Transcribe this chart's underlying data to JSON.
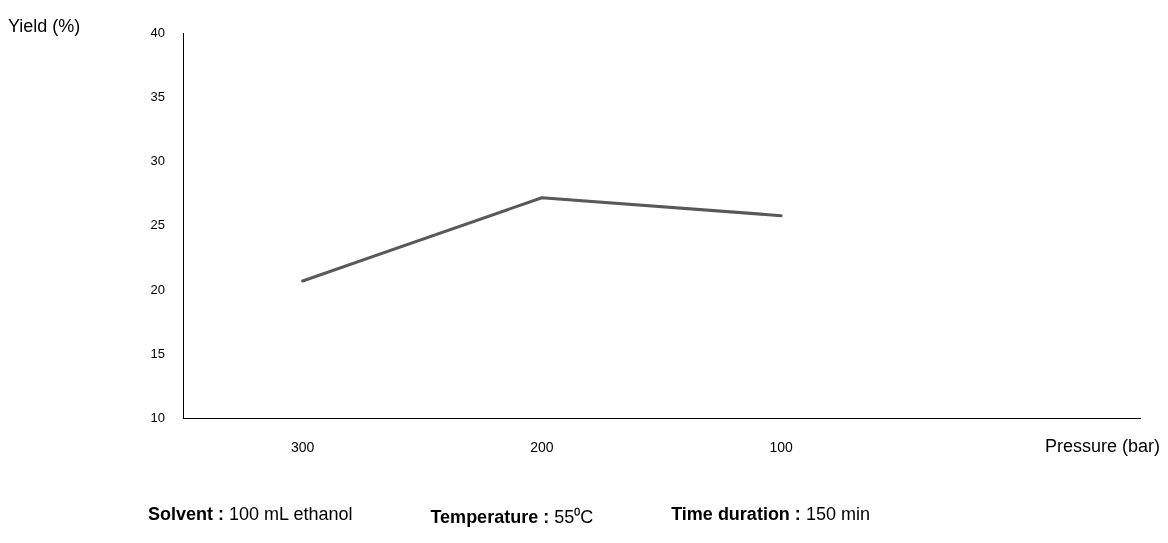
{
  "chart_data": {
    "type": "line",
    "xlabel": "Pressure (bar)",
    "ylabel": "Yield (%)",
    "categories": [
      "300",
      "200",
      "100",
      null
    ],
    "series": [
      {
        "color": "#595959",
        "values": [
          20.7,
          27.2,
          25.8,
          null
        ]
      }
    ],
    "ylim": [
      10,
      40
    ],
    "yticks": [
      10,
      15,
      20,
      25,
      30,
      35,
      40
    ],
    "grid": false,
    "legend": false,
    "marker": "none",
    "line_style": "solid",
    "annotations": [
      "Solvent : 100 mL ethanol",
      "Temperature : 55⁰C",
      "Time duration : 150 min"
    ]
  }
}
